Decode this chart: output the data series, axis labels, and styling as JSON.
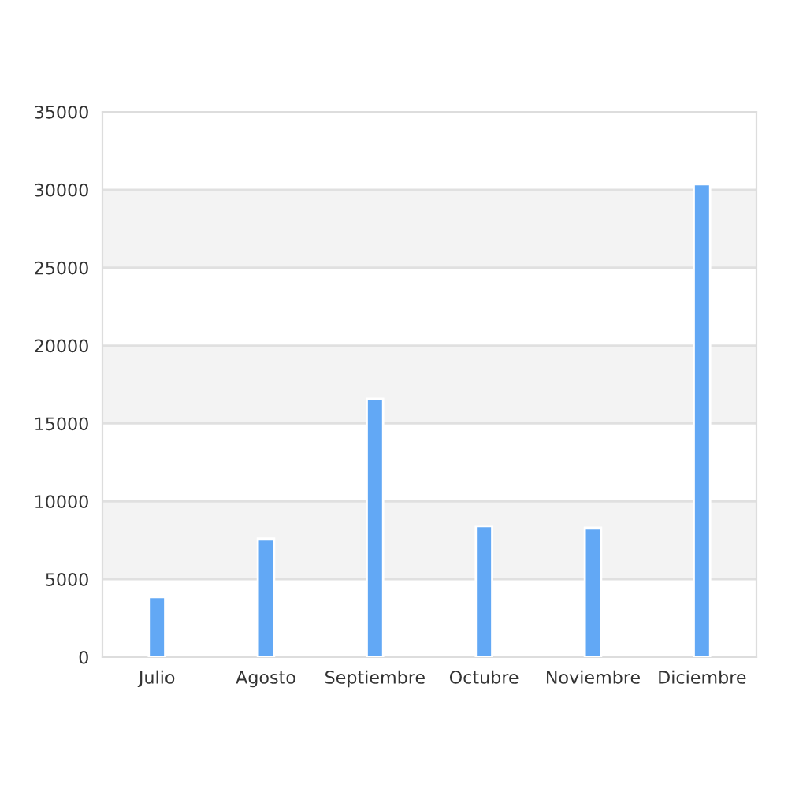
{
  "chart_data": {
    "type": "bar",
    "categories": [
      "Julio",
      "Agosto",
      "Septiembre",
      "Octubre",
      "Noviembre",
      "Diciembre"
    ],
    "values": [
      3850,
      7600,
      16600,
      8400,
      8300,
      30350
    ],
    "color": "#62a8f5",
    "ylim": [
      0,
      35000
    ],
    "yticks": [
      0,
      5000,
      10000,
      15000,
      20000,
      25000,
      30000,
      35000
    ],
    "grid": "y"
  }
}
